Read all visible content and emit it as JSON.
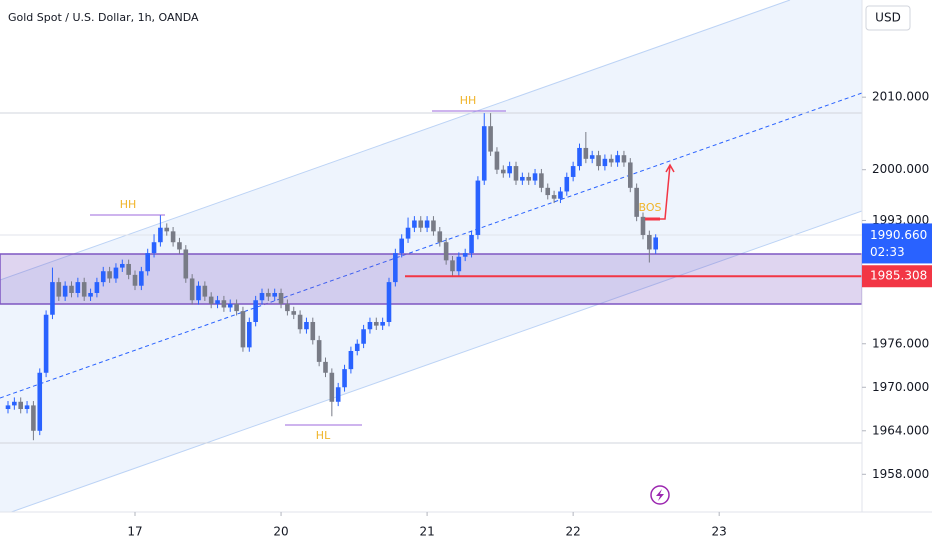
{
  "chart_data": {
    "type": "candlestick",
    "title": "Gold Spot / U.S. Dollar, 1h, OANDA",
    "currency": "USD",
    "up_color": "#2962ff",
    "down_color": "#787b86",
    "grid": false,
    "xlim": [
      -21.26,
      114.49
    ],
    "xticks": [
      {
        "value": 0,
        "label": "17"
      },
      {
        "value": 23,
        "label": "20"
      },
      {
        "value": 46,
        "label": "21"
      },
      {
        "value": 69,
        "label": "22"
      },
      {
        "value": 92,
        "label": "23"
      }
    ],
    "ylim": [
      1952.8,
      2023.4
    ],
    "yticks": [
      {
        "value": 2010,
        "label": "2010.000"
      },
      {
        "value": 2000,
        "label": "2000.000"
      },
      {
        "value": 1993,
        "label": "1993.000"
      },
      {
        "value": 1976,
        "label": "1976.000"
      },
      {
        "value": 1970,
        "label": "1970.000"
      },
      {
        "value": 1964,
        "label": "1964.000"
      },
      {
        "value": 1958,
        "label": "1958.000"
      }
    ],
    "x": [
      -20,
      -19,
      -18,
      -17,
      -16,
      -15,
      -14,
      -13,
      -12,
      -11,
      -10,
      -9,
      -8,
      -7,
      -6,
      -5,
      -4,
      -3,
      -2,
      -1,
      0,
      1,
      2,
      3,
      4,
      5,
      6,
      7,
      8,
      9,
      10,
      11,
      12,
      13,
      14,
      15,
      16,
      17,
      18,
      19,
      20,
      21,
      22,
      23,
      24,
      25,
      26,
      27,
      28,
      29,
      30,
      31,
      32,
      33,
      34,
      35,
      36,
      37,
      38,
      39,
      40,
      41,
      42,
      43,
      44,
      45,
      46,
      47,
      48,
      49,
      50,
      51,
      52,
      53,
      54,
      55,
      56,
      57,
      58,
      59,
      60,
      61,
      62,
      63,
      64,
      65,
      66,
      67,
      68,
      69,
      70,
      71,
      72,
      73,
      74,
      75,
      76,
      77,
      78,
      79,
      80,
      81,
      82
    ],
    "ohlc": [
      [
        1967,
        1968.1,
        1966.4,
        1967.5
      ],
      [
        1967.5,
        1968.6,
        1966.9,
        1968
      ],
      [
        1968,
        1968.6,
        1966.4,
        1967
      ],
      [
        1967,
        1968.1,
        1966.4,
        1967.5
      ],
      [
        1967.5,
        1968.1,
        1962.7,
        1964
      ],
      [
        1964,
        1972.6,
        1963.4,
        1972
      ],
      [
        1972,
        1980.6,
        1971.4,
        1980
      ],
      [
        1980,
        1986.5,
        1979.4,
        1984.5
      ],
      [
        1984.5,
        1985.1,
        1981.9,
        1982.5
      ],
      [
        1982.5,
        1984.6,
        1981.9,
        1984
      ],
      [
        1984,
        1984.6,
        1982.4,
        1983
      ],
      [
        1983,
        1985.1,
        1982.4,
        1984.5
      ],
      [
        1984.5,
        1985.1,
        1981.9,
        1982.5
      ],
      [
        1982.5,
        1983.6,
        1981.9,
        1983
      ],
      [
        1983,
        1985.1,
        1982.4,
        1984.5
      ],
      [
        1984.5,
        1986.6,
        1983.9,
        1986
      ],
      [
        1986,
        1986.6,
        1984.4,
        1985
      ],
      [
        1985,
        1987.1,
        1984.4,
        1986.5
      ],
      [
        1986.5,
        1987.6,
        1985.9,
        1987
      ],
      [
        1987,
        1987.6,
        1984.9,
        1985.5
      ],
      [
        1985.5,
        1986.1,
        1983.4,
        1984
      ],
      [
        1984,
        1986.6,
        1983.4,
        1986
      ],
      [
        1986,
        1989.1,
        1985.4,
        1988.5
      ],
      [
        1988.5,
        1991.1,
        1987.9,
        1990
      ],
      [
        1990,
        1993.7,
        1989.4,
        1992
      ],
      [
        1992,
        1992.6,
        1990.9,
        1991.5
      ],
      [
        1991.5,
        1992.1,
        1989.4,
        1990
      ],
      [
        1990,
        1990.6,
        1988.4,
        1989
      ],
      [
        1989,
        1989.6,
        1984.4,
        1985
      ],
      [
        1985,
        1985.6,
        1981.4,
        1982
      ],
      [
        1982,
        1984.6,
        1981.4,
        1984
      ],
      [
        1984,
        1984.6,
        1981.9,
        1982.5
      ],
      [
        1982.5,
        1983.1,
        1980.9,
        1981.5
      ],
      [
        1981.5,
        1982.6,
        1980.9,
        1982
      ],
      [
        1982,
        1982.6,
        1980.4,
        1981
      ],
      [
        1981,
        1982.1,
        1980.4,
        1981.5
      ],
      [
        1981.5,
        1982.1,
        1979.9,
        1980.5
      ],
      [
        1980.5,
        1981.1,
        1974.9,
        1975.5
      ],
      [
        1975.5,
        1979.6,
        1974.9,
        1979
      ],
      [
        1979,
        1982.6,
        1978.4,
        1982
      ],
      [
        1982,
        1983.6,
        1981.4,
        1983
      ],
      [
        1983,
        1983.6,
        1981.9,
        1982.5
      ],
      [
        1982.5,
        1983.6,
        1981.9,
        1983
      ],
      [
        1983,
        1983.6,
        1980.9,
        1981.5
      ],
      [
        1981.5,
        1982.1,
        1979.9,
        1980.5
      ],
      [
        1980.5,
        1981.1,
        1979.4,
        1980
      ],
      [
        1980,
        1980.6,
        1977.4,
        1978
      ],
      [
        1978,
        1979.6,
        1977.4,
        1979
      ],
      [
        1979,
        1979.6,
        1975.9,
        1976.5
      ],
      [
        1976.5,
        1977.1,
        1972.9,
        1973.5
      ],
      [
        1973.5,
        1974.1,
        1971.4,
        1972
      ],
      [
        1972,
        1972.6,
        1966,
        1968
      ],
      [
        1968,
        1970.6,
        1967.4,
        1970
      ],
      [
        1970,
        1973.1,
        1969.4,
        1972.5
      ],
      [
        1972.5,
        1975.6,
        1971.9,
        1975
      ],
      [
        1975,
        1976.6,
        1974.4,
        1976
      ],
      [
        1976,
        1978.6,
        1975.4,
        1978
      ],
      [
        1978,
        1979.6,
        1977.4,
        1979
      ],
      [
        1979,
        1979.6,
        1977.9,
        1978.5
      ],
      [
        1978.5,
        1979.6,
        1977.9,
        1979
      ],
      [
        1979,
        1985.1,
        1978.4,
        1984.5
      ],
      [
        1984.5,
        1989.1,
        1983.9,
        1988.5
      ],
      [
        1988.5,
        1991.1,
        1987.9,
        1990.5
      ],
      [
        1990.5,
        1993.4,
        1989.9,
        1992
      ],
      [
        1992,
        1993.6,
        1991.4,
        1993
      ],
      [
        1993,
        1993.6,
        1991.4,
        1992
      ],
      [
        1992,
        1993.6,
        1991.4,
        1993
      ],
      [
        1993,
        1993.6,
        1990.9,
        1991.5
      ],
      [
        1991.5,
        1992.1,
        1989.4,
        1990
      ],
      [
        1990,
        1990.6,
        1986.9,
        1987.5
      ],
      [
        1987.5,
        1988.1,
        1985.2,
        1986
      ],
      [
        1986,
        1988.6,
        1985.4,
        1988
      ],
      [
        1988,
        1989.1,
        1987.4,
        1988.5
      ],
      [
        1988.5,
        1991.6,
        1987.9,
        1991
      ],
      [
        1991,
        1999.1,
        1990.4,
        1998.5
      ],
      [
        1998.5,
        2007.8,
        1997.9,
        2006
      ],
      [
        2006,
        2007.8,
        2001.9,
        2002.5
      ],
      [
        2002.5,
        2003.1,
        1999.4,
        2000
      ],
      [
        2000,
        2000.6,
        1998.9,
        1999.5
      ],
      [
        1999.5,
        2001.1,
        1998.9,
        2000.5
      ],
      [
        2000.5,
        2001.1,
        1997.9,
        1998.5
      ],
      [
        1998.5,
        1999.6,
        1997.9,
        1999
      ],
      [
        1999,
        1999.6,
        1997.9,
        1998.5
      ],
      [
        1998.5,
        2000.1,
        1997.9,
        1999.5
      ],
      [
        1999.5,
        2000.1,
        1996.9,
        1997.5
      ],
      [
        1997.5,
        1998.1,
        1995.9,
        1996.5
      ],
      [
        1996.5,
        1997.1,
        1995.4,
        1996
      ],
      [
        1996,
        1997.6,
        1995.4,
        1997
      ],
      [
        1997,
        1999.6,
        1996.4,
        1999
      ],
      [
        1999,
        2001.1,
        1998.4,
        2000.5
      ],
      [
        2000.5,
        2003.6,
        1999.9,
        2003
      ],
      [
        2003,
        2005.2,
        2000.9,
        2001.5
      ],
      [
        2001.5,
        2002.6,
        2000.9,
        2002
      ],
      [
        2002,
        2002.6,
        1999.9,
        2000.5
      ],
      [
        2000.5,
        2002.1,
        1999.9,
        2001.5
      ],
      [
        2001.5,
        2002.1,
        2000.4,
        2001
      ],
      [
        2001,
        2002.6,
        2000.4,
        2002
      ],
      [
        2002,
        2002.6,
        2000.4,
        2001
      ],
      [
        2001,
        2001.6,
        1996.9,
        1997.5
      ],
      [
        1997.5,
        1998.1,
        1992.9,
        1993.5
      ],
      [
        1993.5,
        1994.1,
        1990.4,
        1991
      ],
      [
        1991,
        1991.6,
        1987.2,
        1989
      ],
      [
        1989,
        1991.1,
        1988.4,
        1990.66
      ]
    ],
    "current_price": {
      "value": 1990.66,
      "label": "1990.660"
    },
    "countdown": "02:33",
    "red_level": 1985.308,
    "annotations": [
      "HH",
      "HH",
      "HL",
      "BOS"
    ]
  }
}
